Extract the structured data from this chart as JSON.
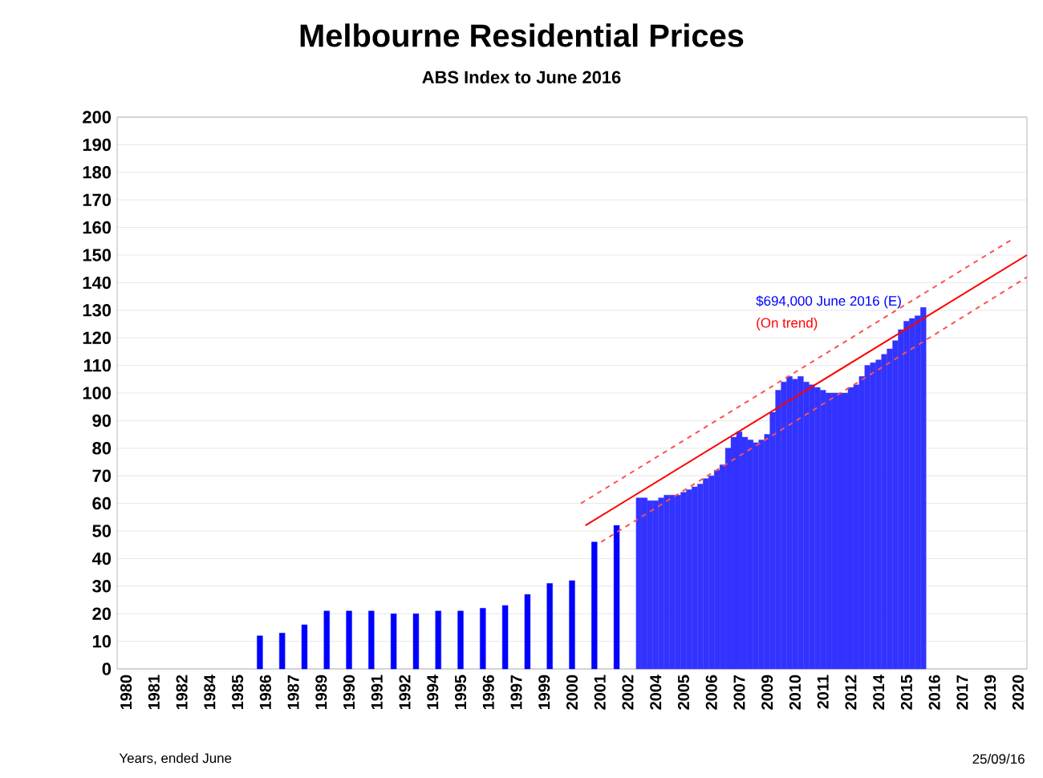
{
  "chart_data": {
    "type": "bar",
    "title": "Melbourne Residential Prices",
    "subtitle": "ABS Index to June 2016",
    "xlim": [
      1979.6,
      2020.4
    ],
    "ylim": [
      0,
      200
    ],
    "xticks": [
      {
        "value": 1980,
        "label": "1980"
      },
      {
        "value": 1981.25,
        "label": "1981"
      },
      {
        "value": 1982.5,
        "label": "1982"
      },
      {
        "value": 1983.75,
        "label": "1984"
      },
      {
        "value": 1985,
        "label": "1985"
      },
      {
        "value": 1986.25,
        "label": "1986"
      },
      {
        "value": 1987.5,
        "label": "1987"
      },
      {
        "value": 1988.75,
        "label": "1989"
      },
      {
        "value": 1990,
        "label": "1990"
      },
      {
        "value": 1991.25,
        "label": "1991"
      },
      {
        "value": 1992.5,
        "label": "1992"
      },
      {
        "value": 1993.75,
        "label": "1994"
      },
      {
        "value": 1995,
        "label": "1995"
      },
      {
        "value": 1996.25,
        "label": "1996"
      },
      {
        "value": 1997.5,
        "label": "1997"
      },
      {
        "value": 1998.75,
        "label": "1999"
      },
      {
        "value": 2000,
        "label": "2000"
      },
      {
        "value": 2001.25,
        "label": "2001"
      },
      {
        "value": 2002.5,
        "label": "2002"
      },
      {
        "value": 2003.75,
        "label": "2004"
      },
      {
        "value": 2005,
        "label": "2005"
      },
      {
        "value": 2006.25,
        "label": "2006"
      },
      {
        "value": 2007.5,
        "label": "2007"
      },
      {
        "value": 2008.75,
        "label": "2009"
      },
      {
        "value": 2010,
        "label": "2010"
      },
      {
        "value": 2011.25,
        "label": "2011"
      },
      {
        "value": 2012.5,
        "label": "2012"
      },
      {
        "value": 2013.75,
        "label": "2014"
      },
      {
        "value": 2015,
        "label": "2015"
      },
      {
        "value": 2016.25,
        "label": "2016"
      },
      {
        "value": 2017.5,
        "label": "2017"
      },
      {
        "value": 2018.75,
        "label": "2019"
      },
      {
        "value": 2020,
        "label": "2020"
      }
    ],
    "yticks": [
      0,
      10,
      20,
      30,
      40,
      50,
      60,
      70,
      80,
      90,
      100,
      110,
      120,
      130,
      140,
      150,
      160,
      170,
      180,
      190,
      200
    ],
    "grid": "y",
    "series": [
      {
        "color": "#0000ff",
        "x": [
          1986,
          1987,
          1988,
          1989,
          1990,
          1991,
          1992,
          1993,
          1994,
          1995,
          1996,
          1997,
          1998,
          1999,
          2000,
          2001,
          2002
        ],
        "values": [
          12,
          13,
          16,
          21,
          21,
          21,
          20,
          20,
          21,
          21,
          22,
          23,
          27,
          31,
          32,
          46,
          52
        ]
      },
      {
        "color": "#3333ff",
        "x": [
          2003,
          2003.25,
          2003.5,
          2003.75,
          2004,
          2004.25,
          2004.5,
          2004.75,
          2005,
          2005.25,
          2005.5,
          2005.75,
          2006,
          2006.25,
          2006.5,
          2006.75,
          2007,
          2007.25,
          2007.5,
          2007.75,
          2008,
          2008.25,
          2008.5,
          2008.75,
          2009,
          2009.25,
          2009.5,
          2009.75,
          2010,
          2010.25,
          2010.5,
          2010.75,
          2011,
          2011.25,
          2011.5,
          2011.75,
          2012,
          2012.25,
          2012.5,
          2012.75,
          2013,
          2013.25,
          2013.5,
          2013.75,
          2014,
          2014.25,
          2014.5,
          2014.75,
          2015,
          2015.25,
          2015.5,
          2015.75
        ],
        "values": [
          62,
          62,
          61,
          61,
          62,
          63,
          63,
          63,
          64,
          65,
          66,
          67,
          69,
          70,
          72,
          74,
          80,
          84,
          86,
          84,
          83,
          82,
          83,
          85,
          93,
          101,
          104,
          106,
          105,
          106,
          104,
          103,
          102,
          101,
          100,
          100,
          100,
          100,
          102,
          103,
          106,
          110,
          111,
          112,
          114,
          116,
          119,
          123,
          126,
          127,
          128,
          131
        ]
      },
      {
        "type": "line",
        "color": "#ff0000",
        "line_style": "solid",
        "x": [
          2000.6,
          2020.4
        ],
        "values": [
          52,
          150
        ]
      },
      {
        "type": "line",
        "color": "#ff5050",
        "line_style": "dashed",
        "x": [
          2000.4,
          2019.8
        ],
        "values": [
          60,
          156
        ]
      },
      {
        "type": "line",
        "color": "#ff5050",
        "line_style": "dashed",
        "x": [
          2001.3,
          2020.4
        ],
        "values": [
          46,
          142
        ]
      }
    ],
    "annotations": [
      "$694,000 June 2016 (E)",
      "(On trend)",
      "Years, ended June",
      "25/09/16"
    ]
  }
}
